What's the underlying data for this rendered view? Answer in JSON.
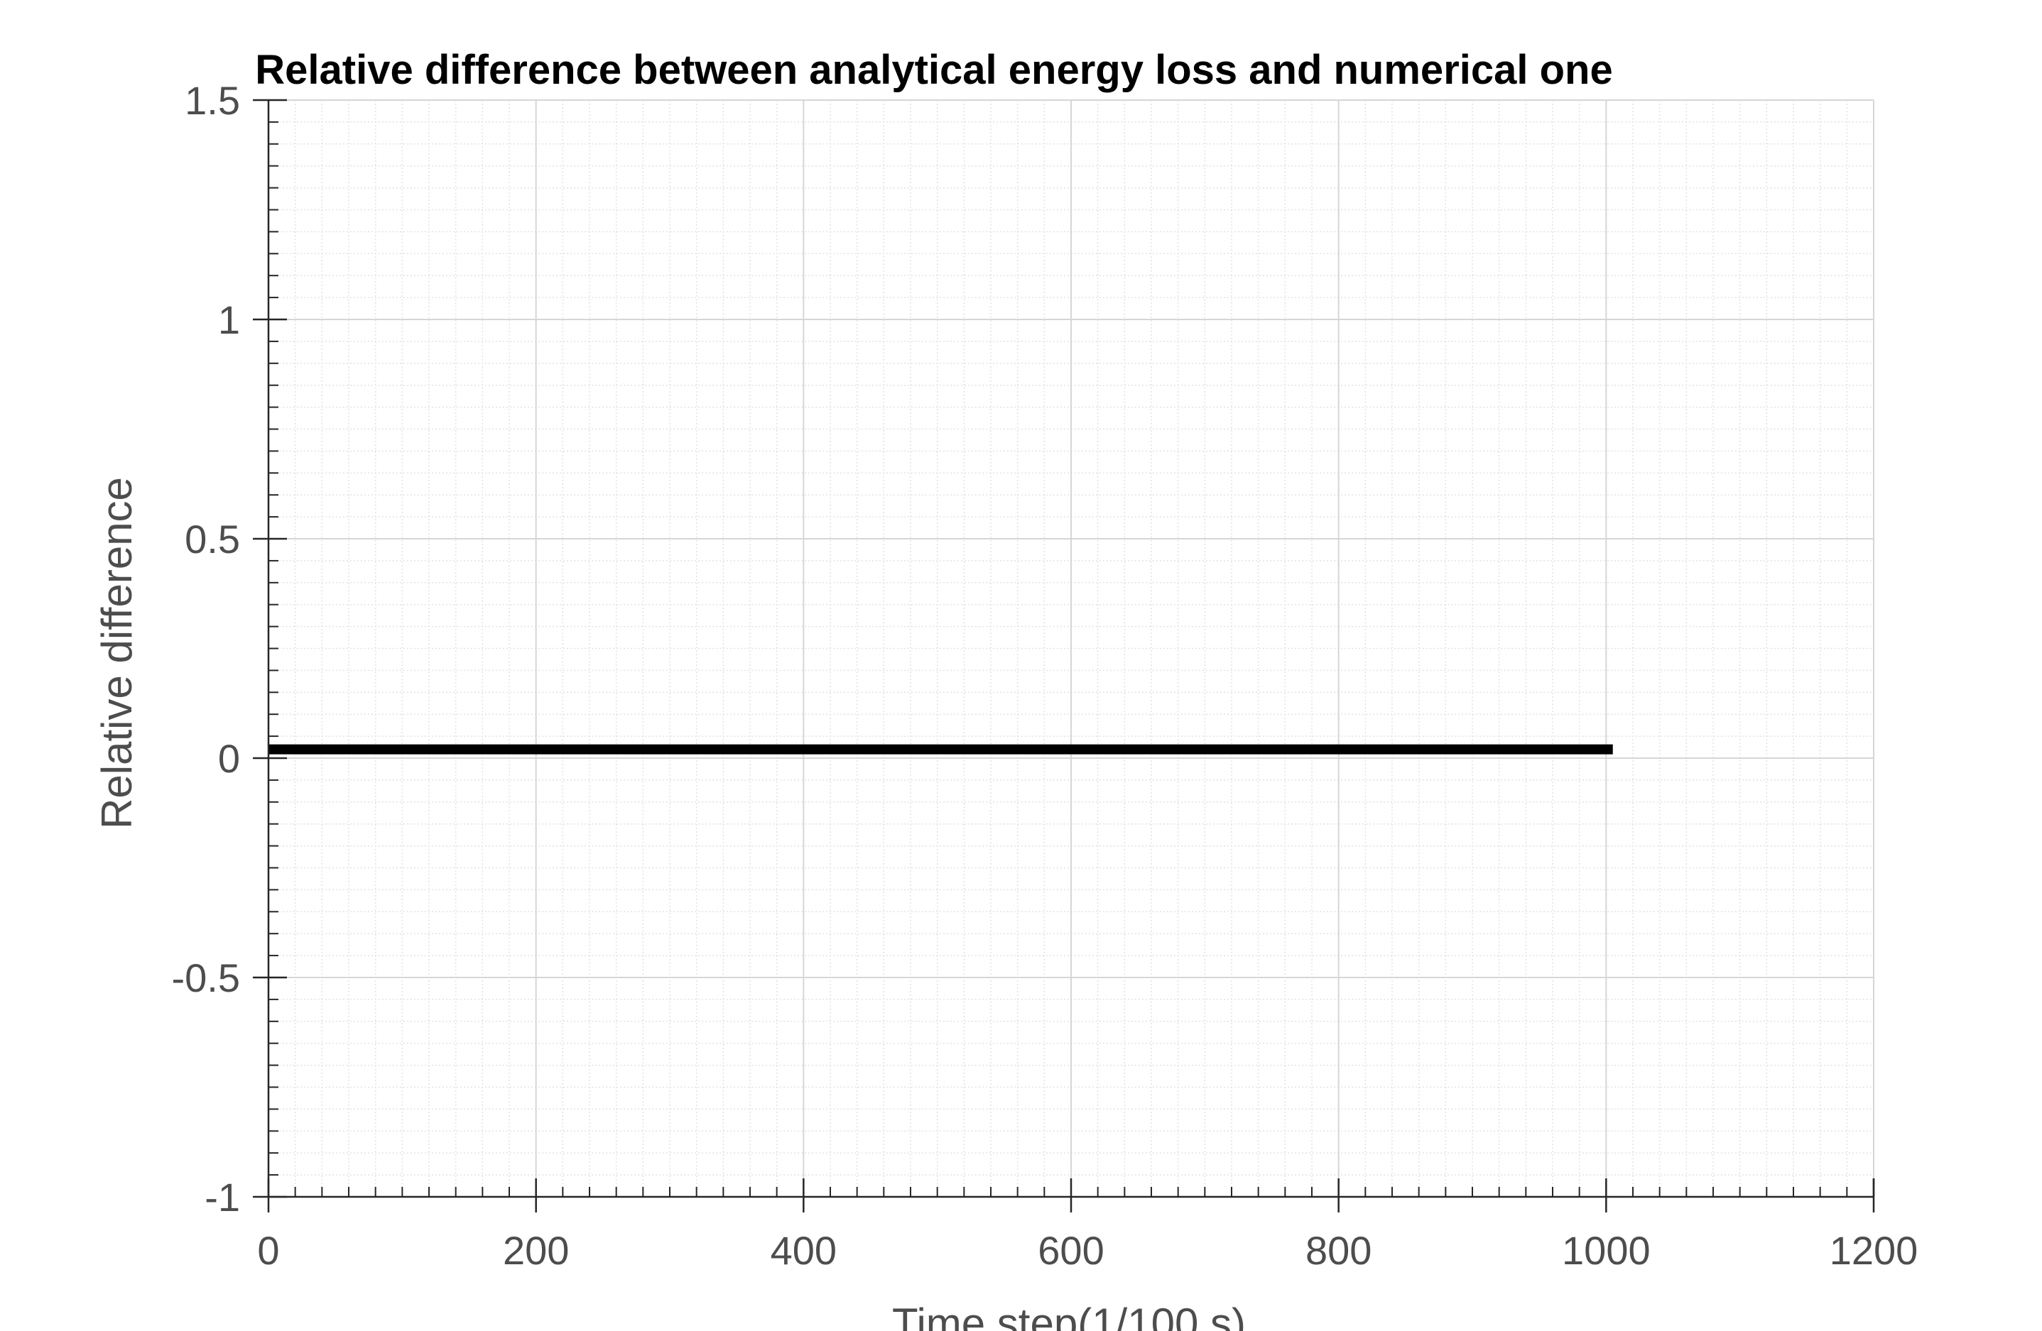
{
  "chart_data": {
    "type": "line",
    "title": "Relative difference between analytical energy loss and numerical one",
    "xlabel": "Time step(1/100 s)",
    "ylabel": "Relative difference",
    "xlim": [
      0,
      1200
    ],
    "ylim": [
      -1,
      1.5
    ],
    "x_ticks": [
      0,
      200,
      400,
      600,
      800,
      1000,
      1200
    ],
    "x_tick_labels": [
      "0",
      "200",
      "400",
      "600",
      "800",
      "1000",
      "1200"
    ],
    "y_ticks": [
      -1,
      -0.5,
      0,
      0.5,
      1,
      1.5
    ],
    "y_tick_labels": [
      "-1",
      "-0.5",
      "0",
      "0.5",
      "1",
      "1.5"
    ],
    "x_minor_step": 20,
    "y_minor_step": 0.05,
    "grid": true,
    "minor_grid": true,
    "legend": "none",
    "series": [
      {
        "color": "#000000",
        "x": [
          0,
          1005
        ],
        "y": [
          0.02,
          0.02
        ]
      }
    ]
  }
}
